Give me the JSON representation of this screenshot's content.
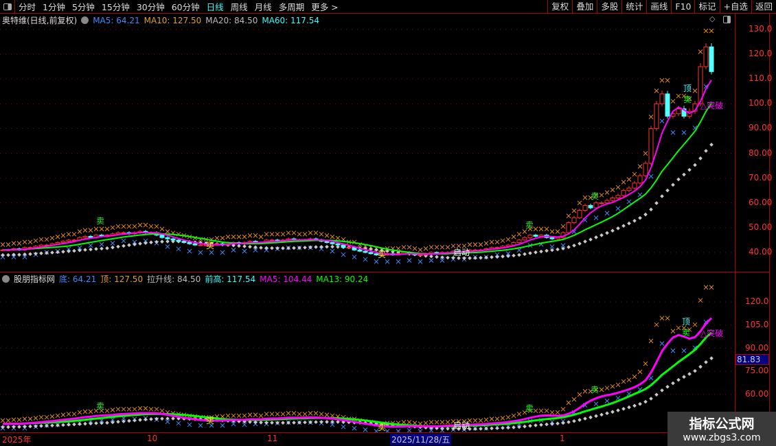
{
  "toolbar": {
    "periods": [
      "分时",
      "1分钟",
      "5分钟",
      "15分钟",
      "30分钟",
      "60分钟",
      "日线",
      "周线",
      "月线",
      "多周期",
      "更多 >"
    ],
    "active_period": "日线",
    "tools": [
      "复权",
      "叠加",
      "多股",
      "统计",
      "画线",
      "F10",
      "标记",
      "+自选",
      "返回"
    ]
  },
  "main_legend": {
    "stock": "奥特维(日线,前复权)",
    "ma5": "MA5: 64.21",
    "ma10": "MA10: 127.50",
    "ma20": "MA20: 84.50",
    "ma60": "MA60: 117.54"
  },
  "sub_legend": {
    "name": "股朋指标网",
    "di": "底: 64.21",
    "ding": "顶: 127.50",
    "lasheng": "拉升线: 84.50",
    "qiangao": "前高: 117.54",
    "ma5": "MA5: 104.44",
    "ma13": "MA13: 90.24"
  },
  "main_axis": [
    "130.0",
    "120.0",
    "110.0",
    "100.0",
    "90.00",
    "80.00",
    "70.00",
    "60.00",
    "50.00",
    "40.00"
  ],
  "sub_axis": [
    "120.0",
    "105.0",
    "90.00",
    "75.00",
    "60.00"
  ],
  "cursor_value": "81.83",
  "time_labels": {
    "year": "2025年",
    "oct": "10",
    "nov": "11",
    "selected": "2025/11/28/五",
    "jan": "1"
  },
  "signals": {
    "buy": "买",
    "sell": "卖",
    "top": "顶",
    "breakout": "△突破",
    "launch": "启动"
  },
  "watermark": {
    "title": "指标公式网",
    "url": "www.zbgs3.com"
  },
  "colors": {
    "up": "#ff3232",
    "down": "#54ffff",
    "ma5": "#ff00ff",
    "ma13": "#00ff00",
    "trail": "#c8c8c8",
    "upper_x": "#e08a1e",
    "lower_x": "#3c8cff",
    "axis": "#ff3232",
    "frame": "#b00000"
  },
  "chart_data": {
    "type": "candlestick",
    "closes": [
      41,
      41,
      41.5,
      41,
      42,
      42,
      42.5,
      43,
      43,
      43.5,
      44,
      44.5,
      45,
      45,
      46,
      46.5,
      46,
      47,
      46.5,
      47,
      47.5,
      48,
      48,
      47.5,
      48,
      48.5,
      48,
      48,
      47,
      46,
      45.5,
      45,
      44.5,
      44,
      43.5,
      43,
      43,
      43,
      43,
      43.5,
      43,
      44,
      44,
      43.5,
      44,
      44.5,
      44,
      44,
      45,
      45,
      44.5,
      45,
      45.5,
      45,
      45,
      45,
      45.5,
      45,
      44.5,
      44,
      43.5,
      43,
      42,
      42,
      41,
      40.5,
      40,
      39.5,
      39,
      39,
      39.5,
      39,
      39.5,
      40,
      39.5,
      39,
      39,
      39.5,
      40,
      39.5,
      40,
      40,
      40.5,
      40,
      40.5,
      41,
      41,
      41,
      41.5,
      42,
      42,
      42.5,
      43,
      44,
      45,
      46,
      47,
      46.5,
      47,
      46,
      45.5,
      46,
      48,
      52,
      54,
      57,
      59,
      58,
      60,
      60,
      61,
      62,
      63,
      65,
      66,
      68,
      71,
      76,
      90,
      100,
      104,
      95,
      96,
      98,
      95,
      97,
      100,
      115,
      123,
      113
    ],
    "main_ylim": [
      37,
      133
    ],
    "sub_scale": {
      "y120": 120,
      "y60": 60
    }
  }
}
